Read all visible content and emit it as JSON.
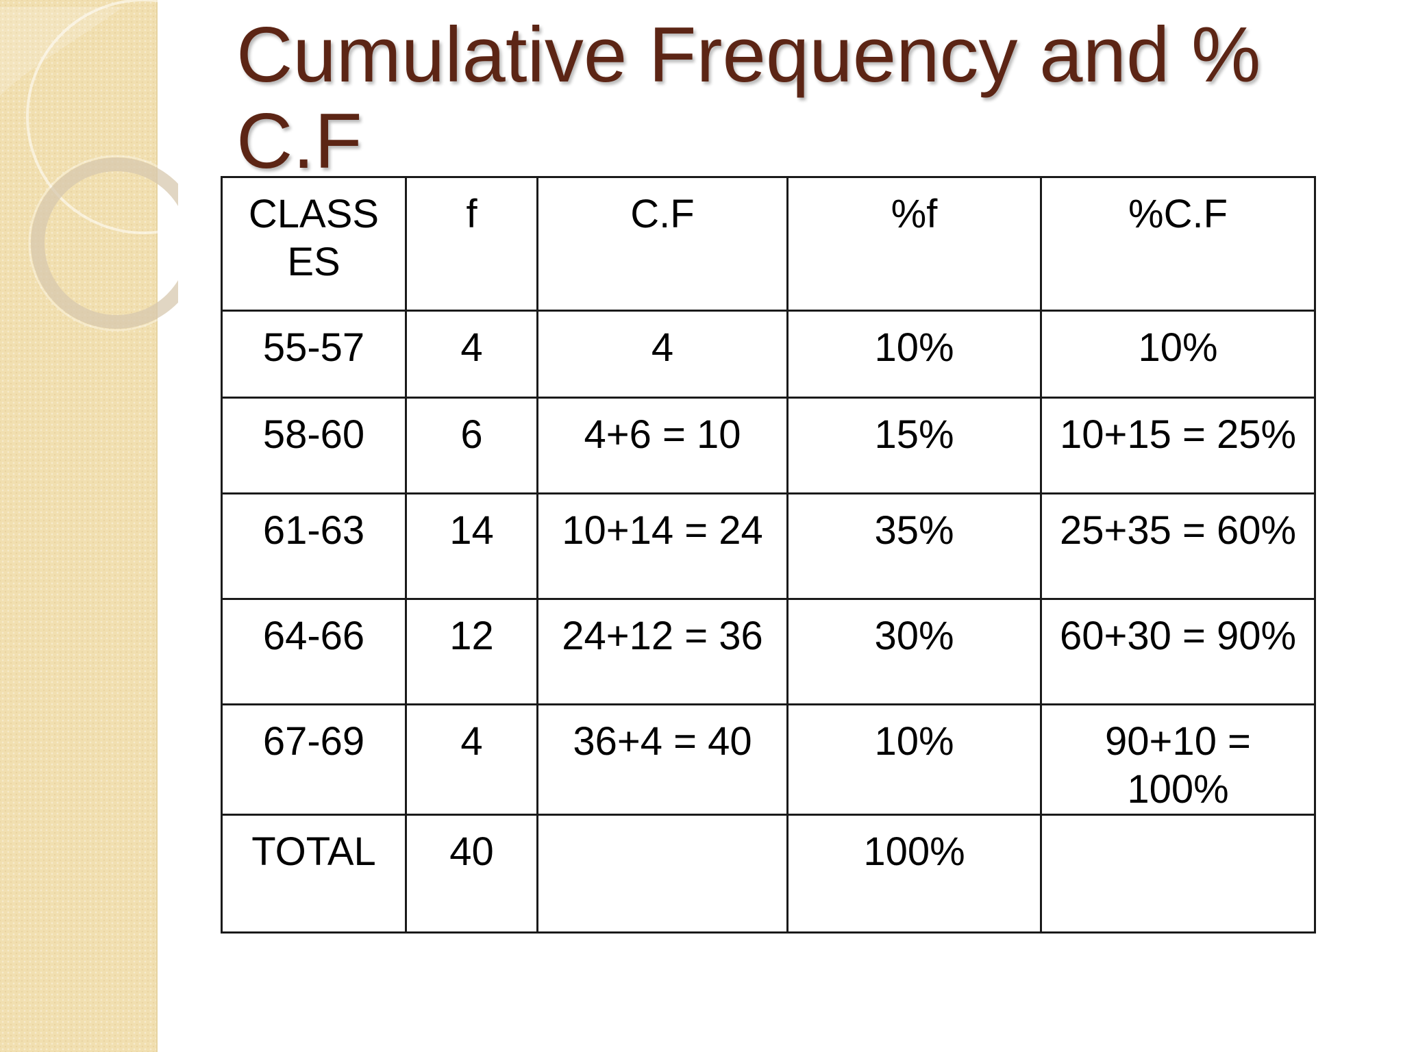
{
  "slide": {
    "title_line1": "Cumulative Frequency and %",
    "title_line2": "C.F"
  },
  "table": {
    "headers": {
      "class_line1": "CLASS",
      "class_line2": "ES",
      "f": "f",
      "cf": "C.F",
      "pf": "%f",
      "pcf": "%C.F"
    },
    "rows": [
      {
        "class": "55-57",
        "f": "4",
        "cf": "4",
        "pf": "10%",
        "pcf_line1": "10%",
        "pcf_line2": ""
      },
      {
        "class": "58-60",
        "f": "6",
        "cf": "4+6 = 10",
        "pf": "15%",
        "pcf_line1": "10+15 = 25%",
        "pcf_line2": ""
      },
      {
        "class": "61-63",
        "f": "14",
        "cf": "10+14 = 24",
        "pf": "35%",
        "pcf_line1": "25+35 = 60%",
        "pcf_line2": ""
      },
      {
        "class": "64-66",
        "f": "12",
        "cf": "24+12 = 36",
        "pf": "30%",
        "pcf_line1": "60+30 = 90%",
        "pcf_line2": ""
      },
      {
        "class": "67-69",
        "f": "4",
        "cf": "36+4 = 40",
        "pf": "10%",
        "pcf_line1": "90+10 =",
        "pcf_line2": "100%"
      }
    ],
    "total": {
      "label": "TOTAL",
      "f": "40",
      "cf": "",
      "pf": "100%",
      "pcf": ""
    }
  },
  "colors": {
    "title": "#5c2515",
    "side_band": "#f1dfb0",
    "border": "#1a1a1a"
  }
}
